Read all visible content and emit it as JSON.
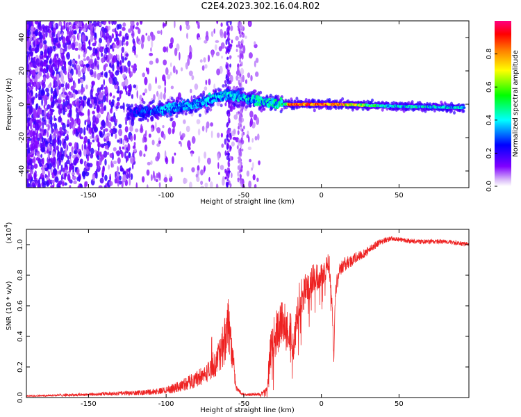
{
  "figure": {
    "title": "C2E4.2023.302.16.04.R02"
  },
  "chart_data": [
    {
      "type": "heatmap",
      "name": "spectrogram",
      "xlabel": "Height of straight line (km)",
      "ylabel": "Frequency (Hz)",
      "xlim": [
        -190,
        95
      ],
      "ylim": [
        -50,
        50
      ],
      "xticks": [
        -150,
        -100,
        -50,
        0,
        50
      ],
      "yticks": [
        -40,
        -20,
        0,
        20,
        40
      ],
      "ytick_labels": [
        "-40",
        "-20",
        "0",
        "20",
        "40"
      ],
      "xtick_labels": [
        "-150",
        "-100",
        "-50",
        "0",
        "50"
      ],
      "colorbar": {
        "label": "Normalized spectral amplitude",
        "range": [
          0,
          1
        ],
        "ticks": [
          0.0,
          0.2,
          0.4,
          0.6,
          0.8
        ],
        "tick_labels": [
          "0.0",
          "0.2",
          "0.4",
          "0.6",
          "0.8"
        ],
        "colors": [
          "#ffffff",
          "#8000ff",
          "#0000ff",
          "#00ffff",
          "#00ff00",
          "#ffff00",
          "#ff8000",
          "#ff0000",
          "#ff0080"
        ]
      },
      "ridge": {
        "description_points": [
          {
            "x": -120,
            "f": -5,
            "amp": 0.25
          },
          {
            "x": -100,
            "f": -3,
            "amp": 0.35
          },
          {
            "x": -80,
            "f": 0,
            "amp": 0.35
          },
          {
            "x": -62,
            "f": 6,
            "amp": 0.4
          },
          {
            "x": -40,
            "f": 2,
            "amp": 0.4
          },
          {
            "x": -25,
            "f": 0,
            "amp": 0.45
          },
          {
            "x": -20,
            "f": 0,
            "amp": 0.95
          },
          {
            "x": 10,
            "f": 0,
            "amp": 0.9
          },
          {
            "x": 40,
            "f": -1,
            "amp": 0.45
          },
          {
            "x": 90,
            "f": -2,
            "amp": 0.4
          }
        ]
      }
    },
    {
      "type": "line",
      "name": "snr",
      "xlabel": "Height of straight line (km)",
      "ylabel": "SNR (10 * v/v)",
      "scale_label": "(x10",
      "scale_exp": "4",
      "scale_close": ")",
      "xlim": [
        -190,
        95
      ],
      "ylim": [
        0,
        1.1
      ],
      "xticks": [
        -150,
        -100,
        -50,
        0,
        50
      ],
      "xtick_labels": [
        "-150",
        "-100",
        "-50",
        "0",
        "50"
      ],
      "yticks": [
        0.0,
        0.2,
        0.4,
        0.6,
        0.8,
        1.0
      ],
      "ytick_labels": [
        "0.0",
        "0.2",
        "0.4",
        "0.6",
        "0.8",
        "1.0"
      ],
      "color": "#ee2222",
      "series": [
        {
          "name": "SNR envelope",
          "x": [
            -190,
            -150,
            -120,
            -105,
            -95,
            -85,
            -75,
            -68,
            -63,
            -60,
            -57,
            -55,
            -50,
            -40,
            -35,
            -33,
            -30,
            -25,
            -20,
            -18,
            -15,
            -10,
            -5,
            0,
            5,
            7,
            8,
            9,
            12,
            20,
            30,
            38,
            45,
            60,
            80,
            95
          ],
          "y": [
            0.01,
            0.02,
            0.03,
            0.04,
            0.06,
            0.1,
            0.15,
            0.22,
            0.35,
            0.5,
            0.25,
            0.06,
            0.02,
            0.02,
            0.05,
            0.3,
            0.4,
            0.5,
            0.45,
            0.3,
            0.6,
            0.7,
            0.78,
            0.8,
            0.88,
            0.6,
            0.25,
            0.7,
            0.85,
            0.9,
            0.96,
            1.02,
            1.04,
            1.02,
            1.02,
            1.0
          ],
          "noise": [
            0.005,
            0.01,
            0.015,
            0.02,
            0.03,
            0.05,
            0.06,
            0.08,
            0.15,
            0.2,
            0.1,
            0.02,
            0.01,
            0.01,
            0.02,
            0.12,
            0.15,
            0.15,
            0.15,
            0.1,
            0.15,
            0.12,
            0.1,
            0.08,
            0.07,
            0.05,
            0.03,
            0.06,
            0.05,
            0.04,
            0.03,
            0.02,
            0.015,
            0.015,
            0.015,
            0.015
          ]
        }
      ]
    }
  ]
}
